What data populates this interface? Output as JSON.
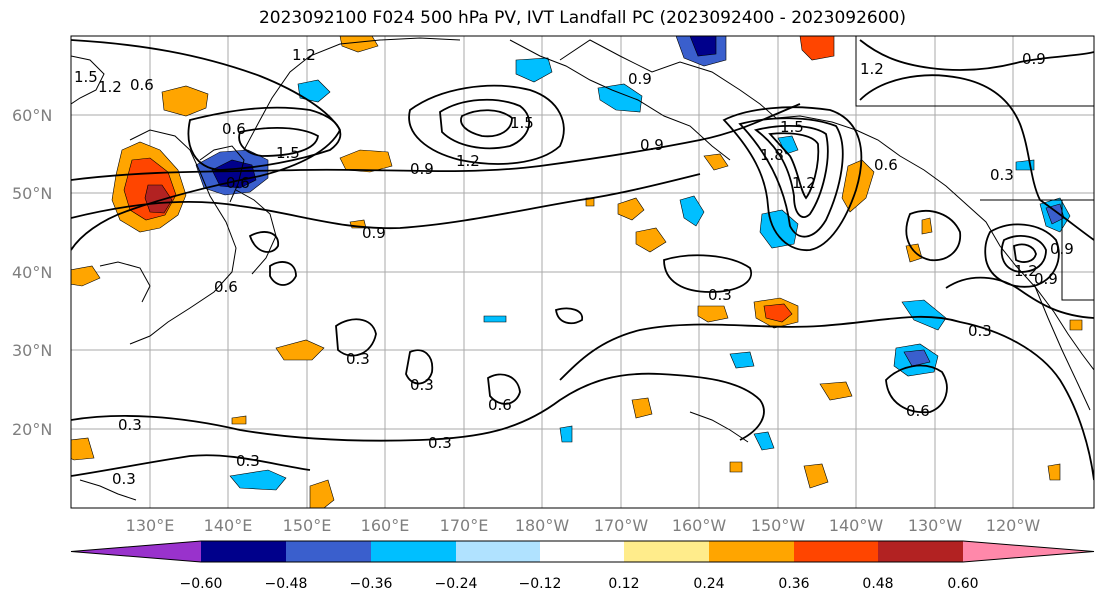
{
  "title": "2023092100 F024 500 hPa PV, IVT Landfall PC (2023092400 - 2023092600)",
  "lat_labels": [
    "60°N",
    "50°N",
    "40°N",
    "30°N",
    "20°N"
  ],
  "lon_labels": [
    "130°E",
    "140°E",
    "150°E",
    "160°E",
    "170°E",
    "180°W",
    "170°W",
    "160°W",
    "150°W",
    "140°W",
    "130°W",
    "120°W"
  ],
  "contour_labels": [
    "1.2",
    "0.9",
    "1.5",
    "1.2",
    "0.6",
    "1.5",
    "0.6",
    "0.9",
    "1.2",
    "1.5",
    "0.9",
    "0.9",
    "0.9",
    "0.6",
    "0.3",
    "0.3",
    "0.3",
    "0.6",
    "0.3",
    "0.3",
    "0.3",
    "0.3",
    "1.5",
    "1.8",
    "1.2",
    "0.6",
    "1.2",
    "0.9",
    "0.3",
    "0.9",
    "0.6",
    "1.2",
    "0.3",
    "0.6"
  ],
  "colorbar": {
    "ticks": [
      "−0.60",
      "−0.48",
      "−0.36",
      "−0.24",
      "−0.12",
      "0.12",
      "0.24",
      "0.36",
      "0.48",
      "0.60"
    ],
    "colors": [
      "#9932cc",
      "#00008b",
      "#3a5fcd",
      "#00bfff",
      "#b0e2ff",
      "#ffffff",
      "#ffec8b",
      "#ffa500",
      "#ff4500",
      "#b22222",
      "#ff88aa"
    ]
  },
  "colors": {
    "grid": "#aaaaaa",
    "contour": "#000000",
    "label_gray": "#7f7f7f"
  }
}
